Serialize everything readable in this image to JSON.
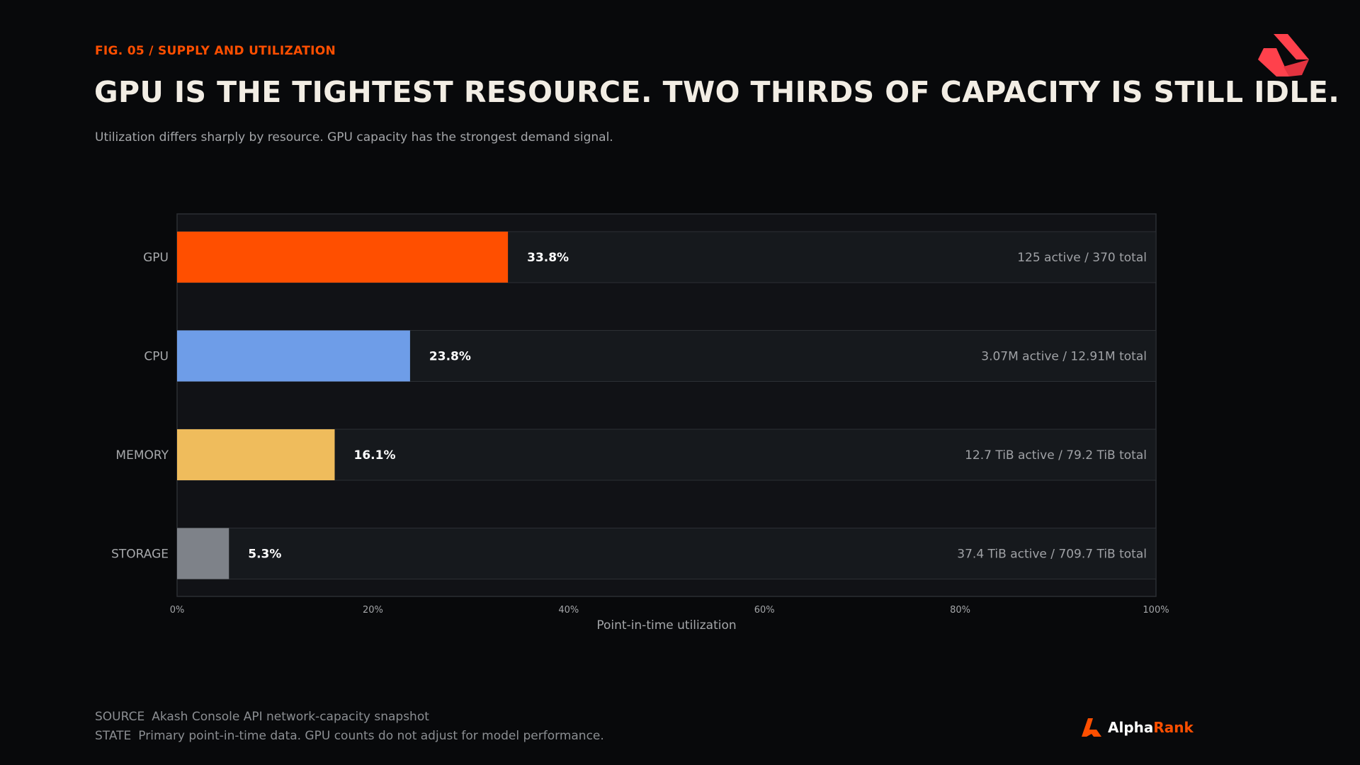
{
  "header": {
    "fig_label": "FIG. 05 / SUPPLY AND UTILIZATION",
    "title": "GPU IS THE TIGHTEST RESOURCE. TWO THIRDS OF CAPACITY IS STILL IDLE.",
    "subtitle": "Utilization differs sharply by resource. GPU capacity has the strongest demand signal."
  },
  "chart_data": {
    "type": "bar",
    "orientation": "horizontal",
    "categories": [
      "GPU",
      "CPU",
      "MEMORY",
      "STORAGE"
    ],
    "values": [
      33.8,
      23.8,
      16.1,
      5.3
    ],
    "value_labels": [
      "33.8%",
      "23.8%",
      "16.1%",
      "5.3%"
    ],
    "detail_labels": [
      "125 active / 370 total",
      "3.07M active / 12.91M total",
      "12.7 TiB active / 79.2 TiB total",
      "37.4 TiB active / 709.7 TiB total"
    ],
    "colors": [
      "#ff4f00",
      "#6e9de8",
      "#efbc5c",
      "#7e8289"
    ],
    "xlim": [
      0,
      100
    ],
    "xticks": [
      0,
      20,
      40,
      60,
      80,
      100
    ],
    "xtick_labels": [
      "0%",
      "20%",
      "40%",
      "60%",
      "80%",
      "100%"
    ],
    "xlabel": "Point-in-time utilization",
    "grid": false
  },
  "footer": {
    "source_key": "SOURCE",
    "source_text": "Akash Console API network-capacity snapshot",
    "state_key": "STATE",
    "state_text": "Primary point-in-time data. GPU counts do not adjust for model performance."
  },
  "brand": {
    "alpha": "Alpha",
    "rank": "Rank",
    "logo_icon": "akash-logo-icon",
    "brand_icon": "alpharank-logo-icon",
    "accent": "#ff4f00",
    "logo_color": "#ff414c"
  }
}
